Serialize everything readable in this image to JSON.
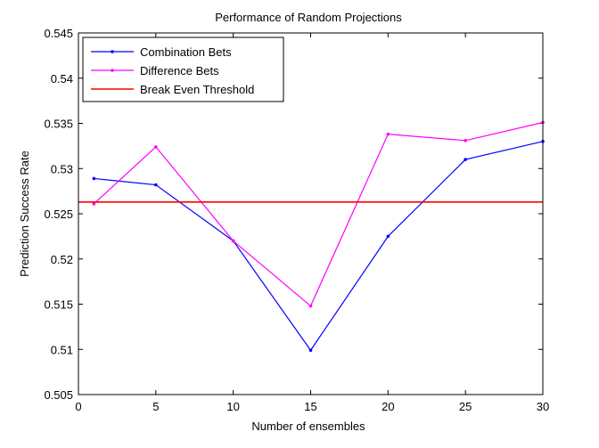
{
  "chart_data": {
    "type": "line",
    "title": "Performance of Random Projections",
    "xlabel": "Number of ensembles",
    "ylabel": "Prediction Success Rate",
    "xlim": [
      0,
      30
    ],
    "ylim": [
      0.505,
      0.545
    ],
    "xticks": [
      0,
      5,
      10,
      15,
      20,
      25,
      30
    ],
    "xtick_labels": [
      "0",
      "5",
      "10",
      "15",
      "20",
      "25",
      "30"
    ],
    "yticks": [
      0.505,
      0.51,
      0.515,
      0.52,
      0.525,
      0.53,
      0.535,
      0.54,
      0.545
    ],
    "ytick_labels": [
      "0.505",
      "0.51",
      "0.515",
      "0.52",
      "0.525",
      "0.53",
      "0.535",
      "0.54",
      "0.545"
    ],
    "grid": false,
    "legend_position": "top-left",
    "series": [
      {
        "name": "Combination Bets",
        "color": "#0000ff",
        "marker": "dot",
        "x": [
          1,
          5,
          10,
          15,
          20,
          25,
          30
        ],
        "y": [
          0.5289,
          0.5282,
          0.522,
          0.5099,
          0.5225,
          0.531,
          0.533
        ]
      },
      {
        "name": "Difference Bets",
        "color": "#ff00ff",
        "marker": "dot",
        "x": [
          1,
          5,
          10,
          15,
          20,
          25,
          30
        ],
        "y": [
          0.5261,
          0.5324,
          0.522,
          0.5148,
          0.5338,
          0.5331,
          0.5351
        ]
      },
      {
        "name": "Break Even Threshold",
        "color": "#ff0000",
        "marker": "none",
        "x": [
          0,
          30
        ],
        "y": [
          0.5263,
          0.5263
        ]
      }
    ]
  }
}
